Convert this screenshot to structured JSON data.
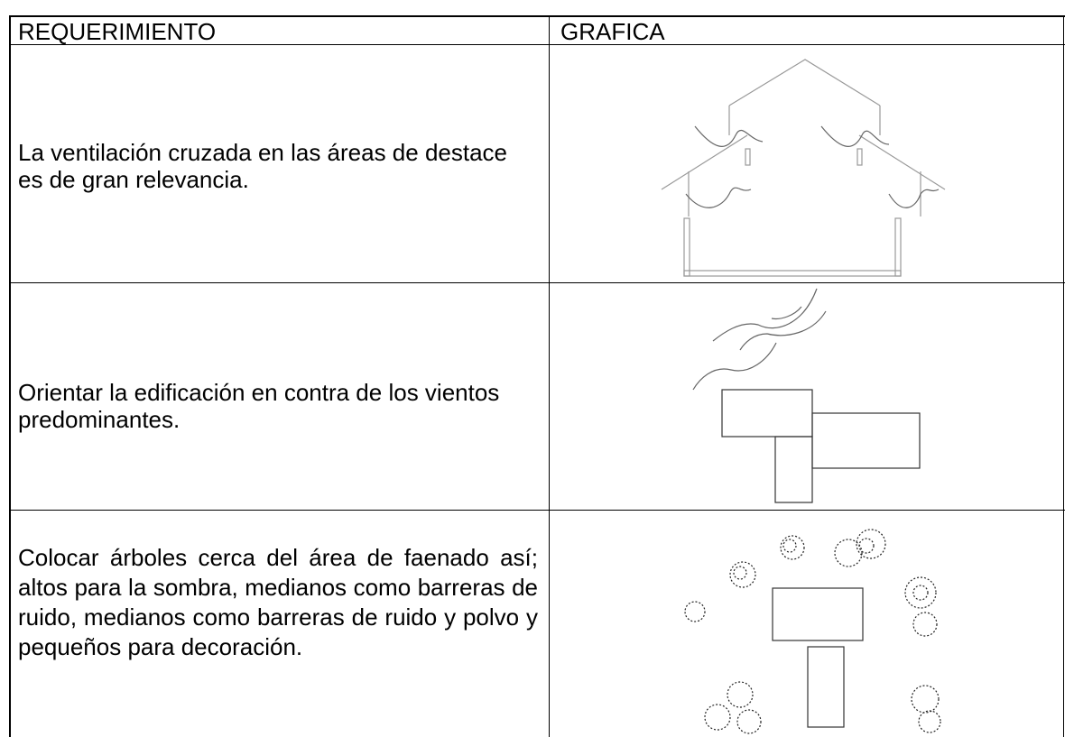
{
  "table": {
    "headers": [
      "REQUERIMIENTO",
      "GRAFICA"
    ],
    "rows": [
      [
        "La ventilación cruzada en las áreas de destace es de gran relevancia."
      ],
      [
        "Orientar la edificación en contra de los vientos predominantes."
      ],
      [
        "Colocar árboles cerca del área de faenado así; altos para la sombra, medianos como barreras de ruido, medianos como barreras de ruido y polvo y pequeños para decoración."
      ]
    ]
  }
}
